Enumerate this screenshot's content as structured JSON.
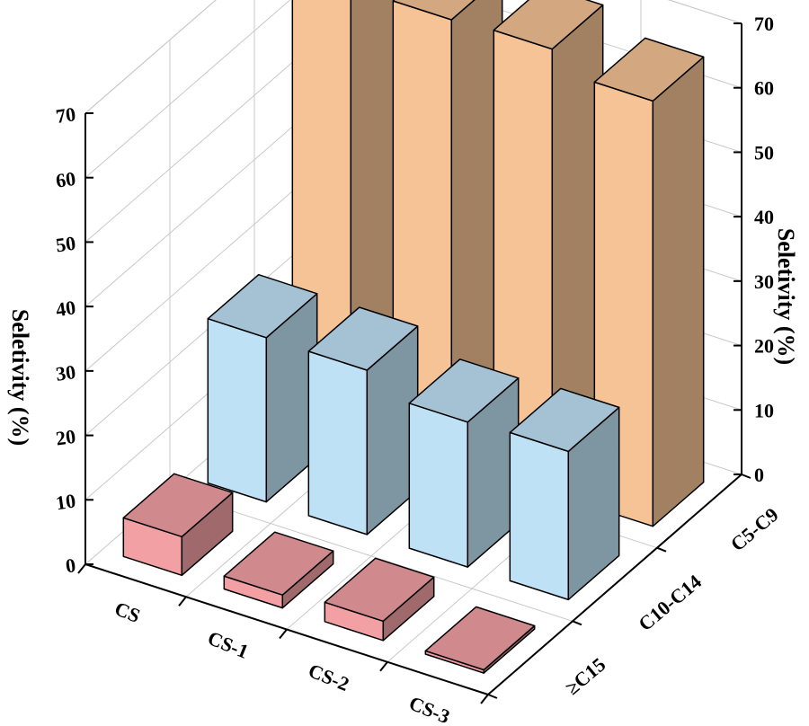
{
  "chart_data": {
    "type": "bar",
    "subtype": "3d-bar",
    "x_categories": [
      "CS",
      "CS-1",
      "CS-2",
      "CS-3"
    ],
    "y_categories": [
      "C5-C9",
      "C10-C14",
      "≥C15"
    ],
    "series": [
      {
        "name": "C5-C9",
        "values": [
          68.5,
          68.5,
          69.0,
          66.0
        ],
        "color": "#F5C396"
      },
      {
        "name": "C10-C14",
        "values": [
          25.5,
          25.5,
          22.5,
          23.0
        ],
        "color": "#BFE1F5"
      },
      {
        "name": "≥C15",
        "values": [
          6.0,
          2.0,
          3.0,
          0.5
        ],
        "color": "#F2A0A4"
      }
    ],
    "zlabel_left": "Seletivity (%)",
    "zlabel_right": "Seletivity (%)",
    "zlim": [
      0,
      70
    ],
    "z_ticks": [
      "0",
      "10",
      "20",
      "30",
      "40",
      "50",
      "60",
      "70"
    ],
    "grid": true
  }
}
